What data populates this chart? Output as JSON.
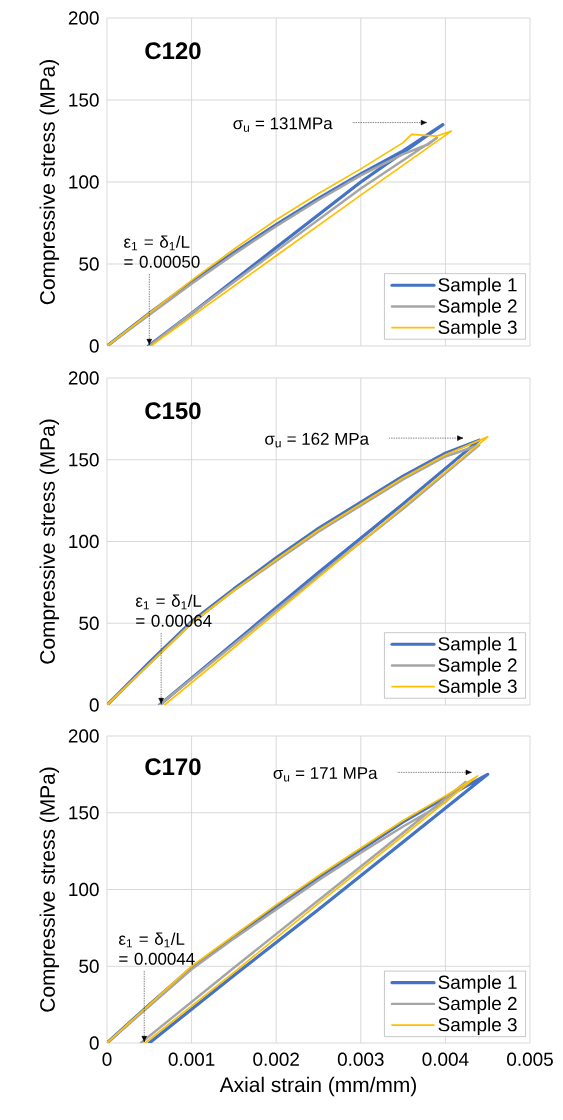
{
  "chart_data": [
    {
      "type": "line",
      "title": "C120",
      "ylabel": "Compressive stress (MPa)",
      "xlim": [
        0,
        0.005
      ],
      "xticks": [
        0,
        0.001,
        0.002,
        0.003,
        0.004,
        0.005
      ],
      "ylim": [
        0,
        200
      ],
      "yticks": [
        0,
        50,
        100,
        150,
        200
      ],
      "grid": true,
      "legend": "bottom right",
      "tick_labels": "y",
      "annotations": [
        "σ$_{u}$ = 131MPa",
        {
          "text": "ε$_{1}$ = δ$_{1}$/L = 0.00050",
          "x": 0.0005,
          "y": 0
        }
      ],
      "series": [
        {
          "name": "Sample 1",
          "color": "#4472c4",
          "x": [
            0,
            0.0005,
            0.001,
            0.0015,
            0.002,
            0.0025,
            0.003,
            0.0035,
            0.00397,
            0.003,
            0.002,
            0.001,
            0.00049
          ],
          "values": [
            0,
            20,
            39,
            57,
            74,
            90,
            105,
            119,
            135,
            100,
            60,
            20,
            0
          ]
        },
        {
          "name": "Sample 2",
          "color": "#a5a5a5",
          "x": [
            0,
            0.0005,
            0.001,
            0.0015,
            0.002,
            0.0025,
            0.003,
            0.0035,
            0.0038,
            0.0039,
            0.003,
            0.002,
            0.001,
            0.0005
          ],
          "values": [
            0,
            null,
            38,
            56,
            73,
            89,
            104,
            117,
            123,
            127,
            96,
            58,
            20,
            0
          ]
        },
        {
          "name": "Sample 3",
          "color": "#ffc000",
          "x": [
            0,
            0.0005,
            0.001,
            0.0015,
            0.002,
            0.0025,
            0.003,
            0.0035,
            0.0036,
            0.0039,
            0.00407,
            0.003,
            0.002,
            0.001,
            0.00052
          ],
          "values": [
            0,
            20,
            40,
            59,
            77,
            93,
            108,
            124,
            129,
            128,
            131,
            92,
            55,
            18,
            0
          ]
        }
      ]
    },
    {
      "type": "line",
      "title": "C150",
      "ylabel": "Compressive stress (MPa)",
      "xlim": [
        0,
        0.005
      ],
      "xticks": [
        0,
        0.001,
        0.002,
        0.003,
        0.004,
        0.005
      ],
      "ylim": [
        0,
        200
      ],
      "yticks": [
        0,
        50,
        100,
        150,
        200
      ],
      "grid": true,
      "legend": "bottom right",
      "tick_labels": "y",
      "annotations": [
        "σ$_{u}$ = 162 MPa",
        {
          "text": "ε$_{1}$ = δ$_{1}$/L = 0.00064",
          "x": 0.00064,
          "y": 0
        }
      ],
      "series": [
        {
          "name": "Sample 1",
          "color": "#4472c4",
          "x": [
            0,
            0.0005,
            0.001,
            0.0015,
            0.002,
            0.0025,
            0.003,
            0.0035,
            0.004,
            0.0044,
            0.0035,
            0.0025,
            0.0015,
            0.00062
          ],
          "values": [
            0,
            26,
            51,
            71,
            90,
            108,
            124,
            140,
            154,
            162,
            123,
            81,
            38,
            0
          ]
        },
        {
          "name": "Sample 2",
          "color": "#a5a5a5",
          "x": [
            0,
            0.0005,
            0.001,
            0.0015,
            0.002,
            0.0025,
            0.003,
            0.0035,
            0.004,
            0.0044,
            0.0035,
            0.0025,
            0.0015,
            0.00062
          ],
          "values": [
            0,
            25,
            50,
            70,
            88,
            106,
            122,
            138,
            152,
            159,
            120,
            79,
            37,
            0
          ]
        },
        {
          "name": "Sample 3",
          "color": "#ffc000",
          "x": [
            0,
            0.0005,
            0.001,
            0.0015,
            0.002,
            0.0025,
            0.003,
            0.0035,
            0.004,
            0.0045,
            0.0035,
            0.0025,
            0.0015,
            0.00068
          ],
          "values": [
            0,
            25,
            50,
            70,
            89,
            107,
            123,
            139,
            153,
            164,
            121,
            78,
            35,
            0
          ]
        }
      ]
    },
    {
      "type": "line",
      "title": "C170",
      "xlabel": "Axial strain (mm/mm)",
      "ylabel": "Compressive stress (MPa)",
      "xlim": [
        0,
        0.005
      ],
      "xticks": [
        0,
        0.001,
        0.002,
        0.003,
        0.004,
        0.005
      ],
      "ylim": [
        0,
        200
      ],
      "yticks": [
        0,
        50,
        100,
        150,
        200
      ],
      "grid": true,
      "legend": "bottom right",
      "annotations": [
        "σ$_{u}$ = 171 MPa",
        {
          "text": "ε$_{1}$ = δ$_{1}$/L = 0.00044",
          "x": 0.00044,
          "y": 0
        }
      ],
      "series": [
        {
          "name": "Sample 1",
          "color": "#4472c4",
          "x": [
            0,
            0.0005,
            0.001,
            0.0015,
            0.002,
            0.0025,
            0.003,
            0.0035,
            0.004,
            0.0045,
            0.0035,
            0.0025,
            0.0015,
            0.0005
          ],
          "values": [
            0,
            25,
            49,
            69,
            89,
            108,
            126,
            144,
            160,
            175,
            131,
            87,
            44,
            0
          ]
        },
        {
          "name": "Sample 2",
          "color": "#a5a5a5",
          "x": [
            0,
            0.0005,
            0.001,
            0.0015,
            0.002,
            0.0025,
            0.003,
            0.0035,
            0.004,
            0.00424,
            0.0035,
            0.0025,
            0.0015,
            0.0004
          ],
          "values": [
            0,
            24,
            48,
            68,
            87,
            106,
            124,
            141,
            157,
            170,
            137,
            93,
            49,
            0
          ]
        },
        {
          "name": "Sample 3",
          "color": "#ffc000",
          "x": [
            0,
            0.0005,
            0.001,
            0.0015,
            0.002,
            0.0025,
            0.003,
            0.0035,
            0.004,
            0.00438,
            0.0035,
            0.0025,
            0.0015,
            0.00045
          ],
          "values": [
            0,
            25,
            50,
            70,
            90,
            109,
            127,
            145,
            161,
            174,
            135,
            91,
            46,
            0
          ]
        }
      ]
    }
  ]
}
